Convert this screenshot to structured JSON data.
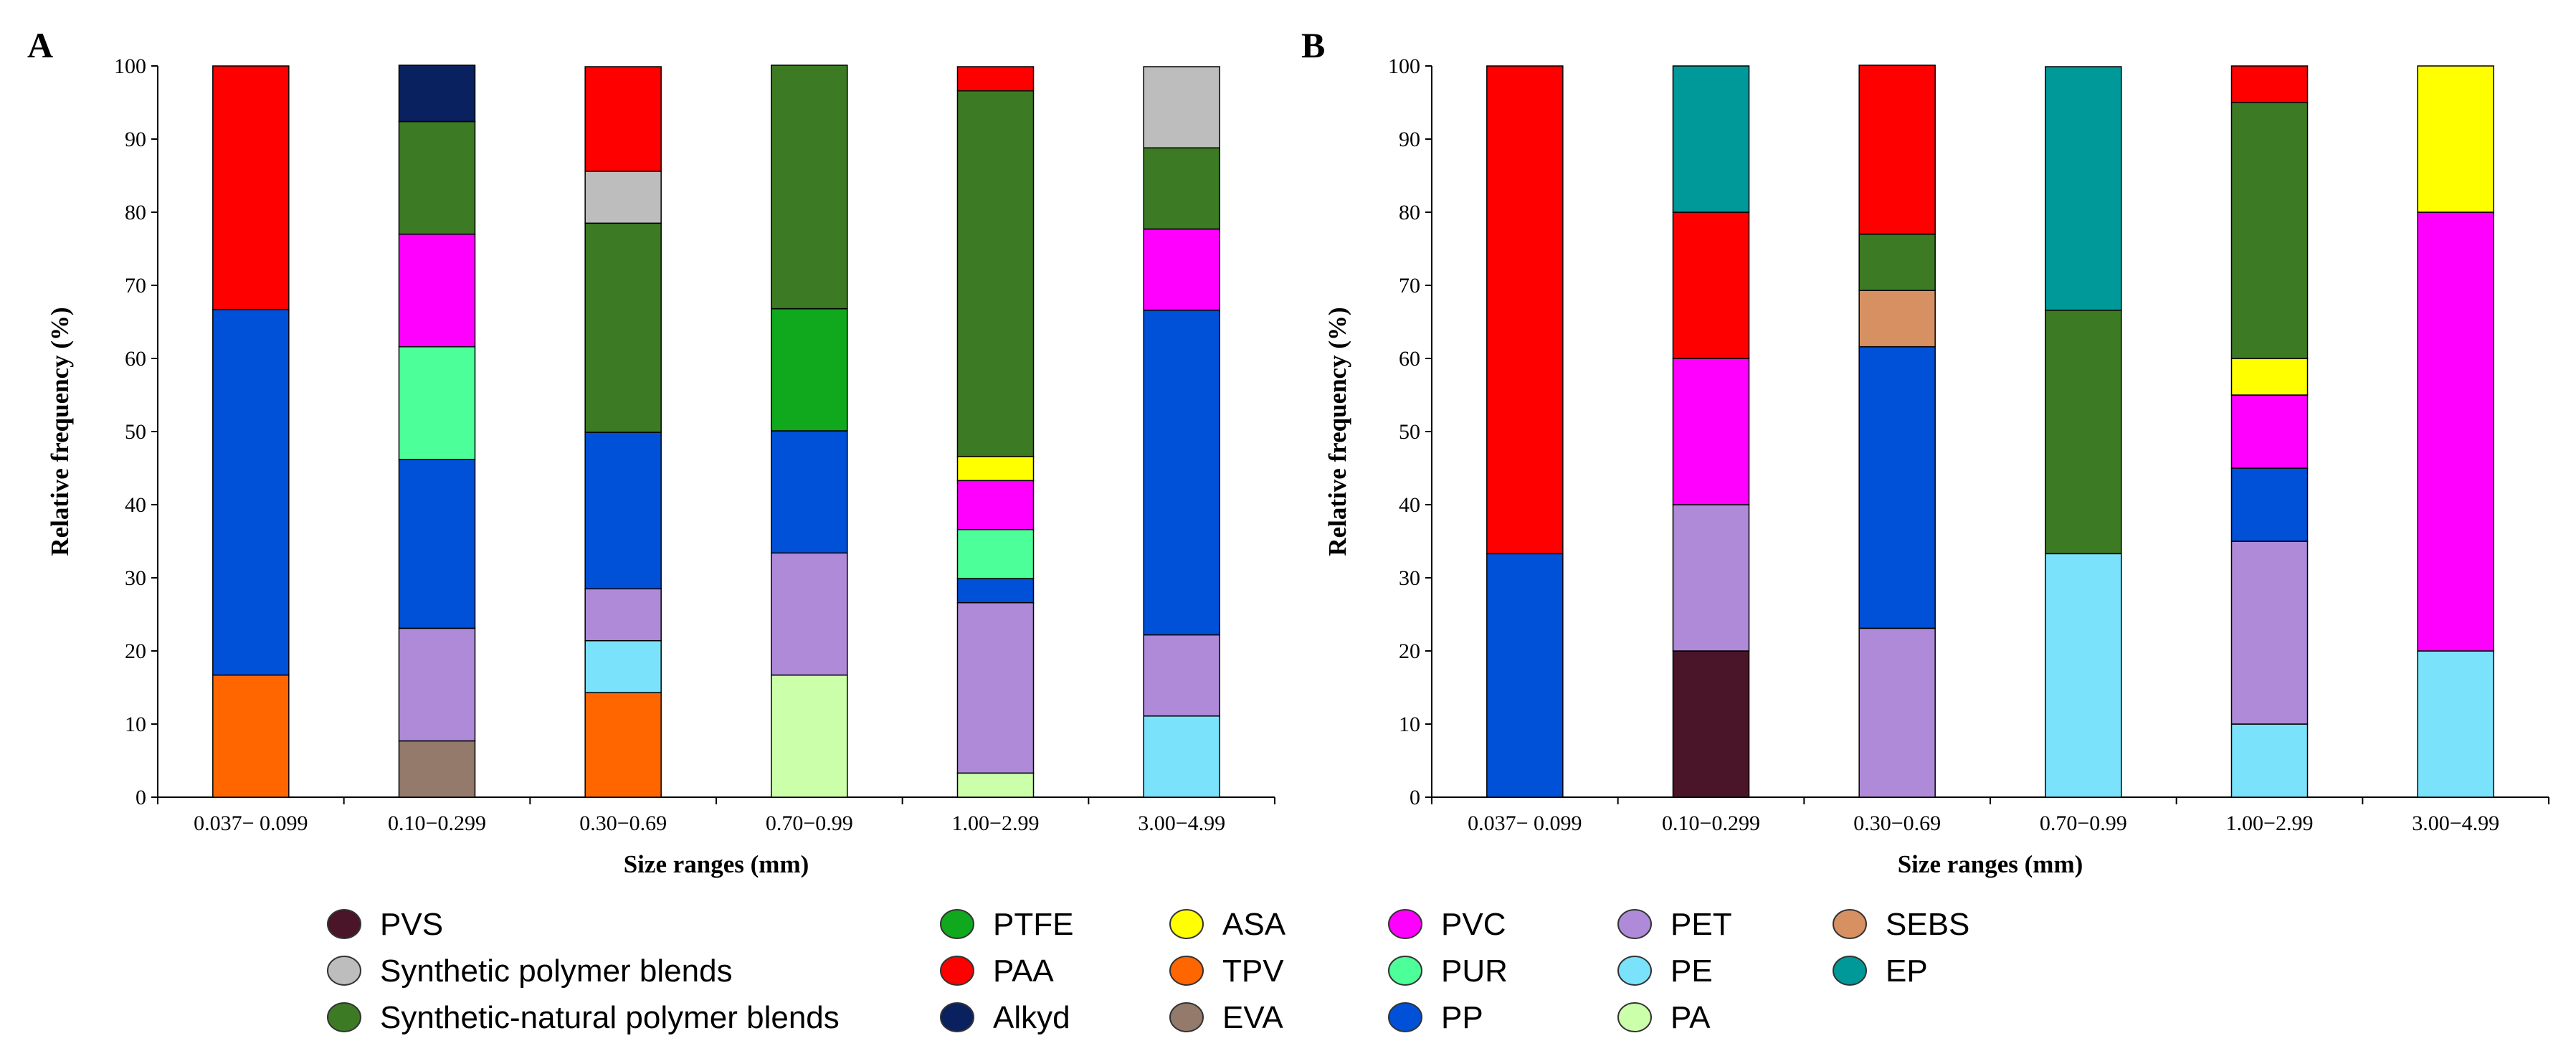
{
  "chart_data": [
    {
      "type": "bar",
      "stacked": true,
      "panel": "A",
      "xlabel": "Size ranges (mm)",
      "ylabel": "Relative frequency (%)",
      "ylim": [
        0,
        100
      ],
      "yticks": [
        0,
        10,
        20,
        30,
        40,
        50,
        60,
        70,
        80,
        90,
        100
      ],
      "categories": [
        "0.037− 0.099",
        "0.10−0.299",
        "0.30−0.69",
        "0.70−0.99",
        "1.00−2.99",
        "3.00−4.99"
      ],
      "series": [
        {
          "name": "TPV",
          "values": [
            16.7,
            0,
            14.3,
            0,
            0,
            0
          ]
        },
        {
          "name": "EVA",
          "values": [
            0,
            7.7,
            0,
            0,
            0,
            0
          ]
        },
        {
          "name": "PA",
          "values": [
            0,
            0,
            0,
            16.7,
            3.3,
            0
          ]
        },
        {
          "name": "PE",
          "values": [
            0,
            0,
            7.1,
            0,
            0,
            11.1
          ]
        },
        {
          "name": "PET",
          "values": [
            0,
            15.4,
            7.1,
            16.7,
            23.3,
            11.1
          ]
        },
        {
          "name": "PP",
          "values": [
            50.0,
            23.1,
            21.4,
            16.7,
            3.3,
            44.4
          ]
        },
        {
          "name": "PUR",
          "values": [
            0,
            15.4,
            0,
            0,
            6.7,
            0
          ]
        },
        {
          "name": "PVC",
          "values": [
            0,
            15.4,
            0,
            0,
            6.7,
            11.1
          ]
        },
        {
          "name": "ASA",
          "values": [
            0,
            0,
            0,
            0,
            3.3,
            0
          ]
        },
        {
          "name": "PTFE",
          "values": [
            0,
            0,
            0,
            16.7,
            0,
            0
          ]
        },
        {
          "name": "Synthetic-natural polymer blends",
          "values": [
            0,
            15.4,
            28.6,
            33.3,
            50.0,
            11.1
          ]
        },
        {
          "name": "Synthetic polymer blends",
          "values": [
            0,
            0,
            7.1,
            0,
            0,
            11.1
          ]
        },
        {
          "name": "PAA",
          "values": [
            33.3,
            0,
            14.3,
            0,
            3.3,
            0
          ]
        },
        {
          "name": "Alkyd",
          "values": [
            0,
            7.7,
            0,
            0,
            0,
            0
          ]
        }
      ]
    },
    {
      "type": "bar",
      "stacked": true,
      "panel": "B",
      "xlabel": "Size ranges (mm)",
      "ylabel": "Relative frequency (%)",
      "ylim": [
        0,
        100
      ],
      "yticks": [
        0,
        10,
        20,
        30,
        40,
        50,
        60,
        70,
        80,
        90,
        100
      ],
      "categories": [
        "0.037− 0.099",
        "0.10−0.299",
        "0.30−0.69",
        "0.70−0.99",
        "1.00−2.99",
        "3.00−4.99"
      ],
      "series": [
        {
          "name": "PVS",
          "values": [
            0,
            20,
            0,
            0,
            0,
            0
          ]
        },
        {
          "name": "PE",
          "values": [
            0,
            0,
            0,
            33.3,
            10,
            20
          ]
        },
        {
          "name": "PET",
          "values": [
            0,
            20,
            23.1,
            0,
            25,
            0
          ]
        },
        {
          "name": "PP",
          "values": [
            33.3,
            0,
            38.5,
            0,
            10,
            0
          ]
        },
        {
          "name": "PVC",
          "values": [
            0,
            20,
            0,
            0,
            10,
            60
          ]
        },
        {
          "name": "ASA",
          "values": [
            0,
            0,
            0,
            0,
            5,
            20
          ]
        },
        {
          "name": "SEBS",
          "values": [
            0,
            0,
            7.7,
            0,
            0,
            0
          ]
        },
        {
          "name": "Synthetic-natural polymer blends",
          "values": [
            0,
            0,
            7.7,
            33.3,
            35,
            0
          ]
        },
        {
          "name": "PAA",
          "values": [
            66.7,
            20,
            23.1,
            0,
            5,
            0
          ]
        },
        {
          "name": "EP",
          "values": [
            0,
            20,
            0,
            33.3,
            0,
            0
          ]
        }
      ]
    }
  ],
  "colors": {
    "PVS": "#4a1429",
    "Synthetic polymer blends": "#bdbdbd",
    "Synthetic-natural polymer blends": "#3d7a24",
    "PTFE": "#10a81c",
    "PAA": "#ff0000",
    "Alkyd": "#0a2160",
    "ASA": "#ffff00",
    "TPV": "#ff6600",
    "EVA": "#937a6b",
    "PVC": "#ff00ff",
    "PUR": "#4dff99",
    "PP": "#0050d8",
    "PET": "#ae8ad8",
    "PE": "#7ae2fb",
    "PA": "#ccffaa",
    "SEBS": "#d79061",
    "EP": "#009999"
  },
  "legend": {
    "columns": [
      [
        "PVS",
        "Synthetic polymer blends",
        "Synthetic-natural polymer blends"
      ],
      [
        "PTFE",
        "PAA",
        "Alkyd"
      ],
      [
        "ASA",
        "TPV",
        "EVA"
      ],
      [
        "PVC",
        "PUR",
        "PP"
      ],
      [
        "PET",
        "PE",
        "PA"
      ],
      [
        "SEBS",
        "EP"
      ]
    ]
  }
}
